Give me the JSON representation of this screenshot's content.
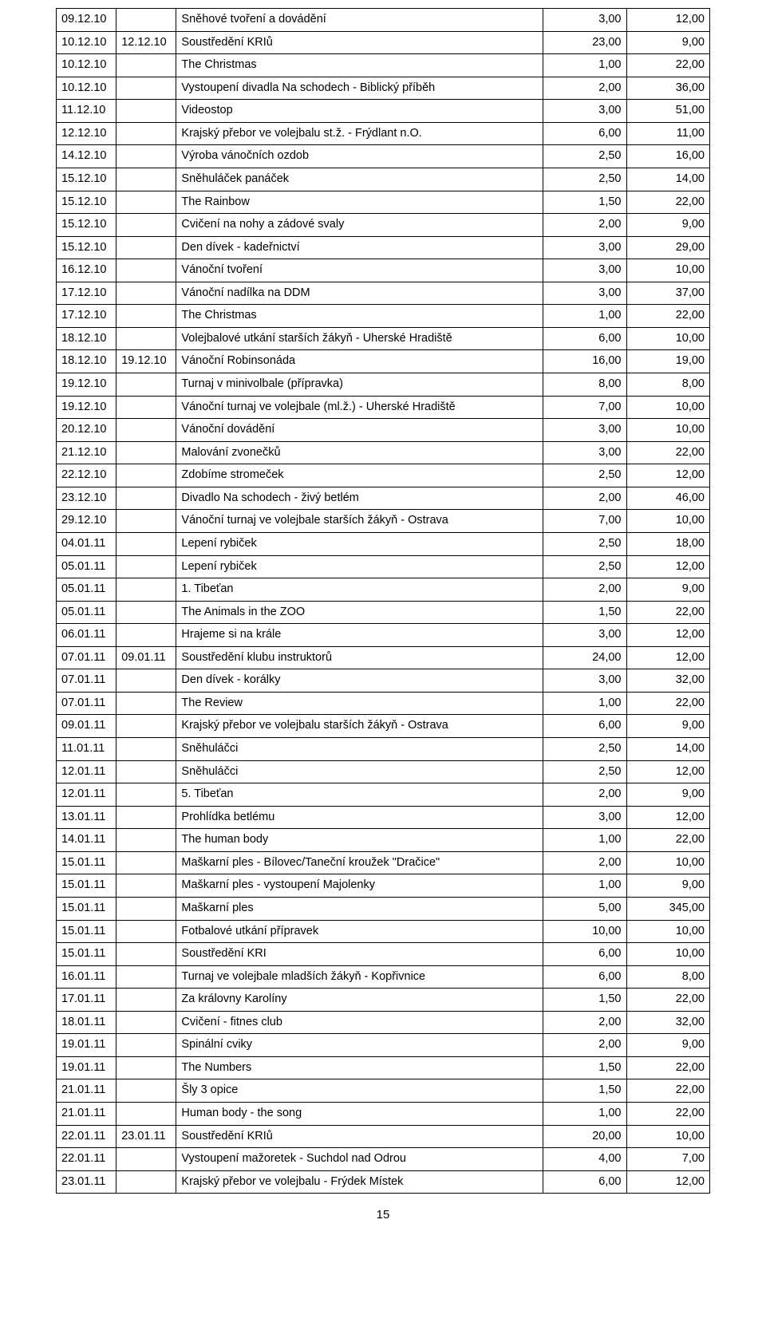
{
  "page_number": "15",
  "rows": [
    {
      "d1": "09.12.10",
      "d2": "",
      "desc": "Sněhové tvoření a dovádění",
      "v1": "3,00",
      "v2": "12,00"
    },
    {
      "d1": "10.12.10",
      "d2": "12.12.10",
      "desc": "Soustředění KRIů",
      "v1": "23,00",
      "v2": "9,00"
    },
    {
      "d1": "10.12.10",
      "d2": "",
      "desc": "The Christmas",
      "v1": "1,00",
      "v2": "22,00"
    },
    {
      "d1": "10.12.10",
      "d2": "",
      "desc": "Vystoupení divadla Na schodech - Biblický příběh",
      "v1": "2,00",
      "v2": "36,00"
    },
    {
      "d1": "11.12.10",
      "d2": "",
      "desc": "Videostop",
      "v1": "3,00",
      "v2": "51,00"
    },
    {
      "d1": "12.12.10",
      "d2": "",
      "desc": "Krajský přebor ve volejbalu st.ž. - Frýdlant n.O.",
      "v1": "6,00",
      "v2": "11,00"
    },
    {
      "d1": "14.12.10",
      "d2": "",
      "desc": "Výroba vánočních ozdob",
      "v1": "2,50",
      "v2": "16,00"
    },
    {
      "d1": "15.12.10",
      "d2": "",
      "desc": "Sněhuláček panáček",
      "v1": "2,50",
      "v2": "14,00"
    },
    {
      "d1": "15.12.10",
      "d2": "",
      "desc": "The Rainbow",
      "v1": "1,50",
      "v2": "22,00"
    },
    {
      "d1": "15.12.10",
      "d2": "",
      "desc": "Cvičení na nohy a zádové svaly",
      "v1": "2,00",
      "v2": "9,00"
    },
    {
      "d1": "15.12.10",
      "d2": "",
      "desc": "Den dívek - kadeřnictví",
      "v1": "3,00",
      "v2": "29,00"
    },
    {
      "d1": "16.12.10",
      "d2": "",
      "desc": "Vánoční tvoření",
      "v1": "3,00",
      "v2": "10,00"
    },
    {
      "d1": "17.12.10",
      "d2": "",
      "desc": "Vánoční nadílka na DDM",
      "v1": "3,00",
      "v2": "37,00"
    },
    {
      "d1": "17.12.10",
      "d2": "",
      "desc": "The Christmas",
      "v1": "1,00",
      "v2": "22,00"
    },
    {
      "d1": "18.12.10",
      "d2": "",
      "desc": "Volejbalové utkání starších žákyň - Uherské Hradiště",
      "v1": "6,00",
      "v2": "10,00"
    },
    {
      "d1": "18.12.10",
      "d2": "19.12.10",
      "desc": "Vánoční Robinsonáda",
      "v1": "16,00",
      "v2": "19,00"
    },
    {
      "d1": "19.12.10",
      "d2": "",
      "desc": "Turnaj v minivolbale (přípravka)",
      "v1": "8,00",
      "v2": "8,00"
    },
    {
      "d1": "19.12.10",
      "d2": "",
      "desc": "Vánoční turnaj ve volejbale (ml.ž.) - Uherské Hradiště",
      "v1": "7,00",
      "v2": "10,00"
    },
    {
      "d1": "20.12.10",
      "d2": "",
      "desc": "Vánoční dovádění",
      "v1": "3,00",
      "v2": "10,00"
    },
    {
      "d1": "21.12.10",
      "d2": "",
      "desc": "Malování zvonečků",
      "v1": "3,00",
      "v2": "22,00"
    },
    {
      "d1": "22.12.10",
      "d2": "",
      "desc": "Zdobíme stromeček",
      "v1": "2,50",
      "v2": "12,00"
    },
    {
      "d1": "23.12.10",
      "d2": "",
      "desc": "Divadlo Na schodech - živý betlém",
      "v1": "2,00",
      "v2": "46,00"
    },
    {
      "d1": "29.12.10",
      "d2": "",
      "desc": "Vánoční turnaj ve volejbale starších žákyň - Ostrava",
      "v1": "7,00",
      "v2": "10,00"
    },
    {
      "d1": "04.01.11",
      "d2": "",
      "desc": "Lepení rybiček",
      "v1": "2,50",
      "v2": "18,00"
    },
    {
      "d1": "05.01.11",
      "d2": "",
      "desc": "Lepení rybiček",
      "v1": "2,50",
      "v2": "12,00"
    },
    {
      "d1": "05.01.11",
      "d2": "",
      "desc": "1. Tibeťan",
      "v1": "2,00",
      "v2": "9,00"
    },
    {
      "d1": "05.01.11",
      "d2": "",
      "desc": "The Animals in the ZOO",
      "v1": "1,50",
      "v2": "22,00"
    },
    {
      "d1": "06.01.11",
      "d2": "",
      "desc": "Hrajeme si na krále",
      "v1": "3,00",
      "v2": "12,00"
    },
    {
      "d1": "07.01.11",
      "d2": "09.01.11",
      "desc": "Soustředění klubu instruktorů",
      "v1": "24,00",
      "v2": "12,00"
    },
    {
      "d1": "07.01.11",
      "d2": "",
      "desc": "Den dívek - korálky",
      "v1": "3,00",
      "v2": "32,00"
    },
    {
      "d1": "07.01.11",
      "d2": "",
      "desc": "The Review",
      "v1": "1,00",
      "v2": "22,00"
    },
    {
      "d1": "09.01.11",
      "d2": "",
      "desc": "Krajský přebor ve volejbalu starších žákyň - Ostrava",
      "v1": "6,00",
      "v2": "9,00"
    },
    {
      "d1": "11.01.11",
      "d2": "",
      "desc": "Sněhuláčci",
      "v1": "2,50",
      "v2": "14,00"
    },
    {
      "d1": "12.01.11",
      "d2": "",
      "desc": "Sněhuláčci",
      "v1": "2,50",
      "v2": "12,00"
    },
    {
      "d1": "12.01.11",
      "d2": "",
      "desc": "5. Tibeťan",
      "v1": "2,00",
      "v2": "9,00"
    },
    {
      "d1": "13.01.11",
      "d2": "",
      "desc": "Prohlídka betlému",
      "v1": "3,00",
      "v2": "12,00"
    },
    {
      "d1": "14.01.11",
      "d2": "",
      "desc": "The human body",
      "v1": "1,00",
      "v2": "22,00"
    },
    {
      "d1": "15.01.11",
      "d2": "",
      "desc": "Maškarní ples - Bílovec/Taneční kroužek \"Dračice\"",
      "v1": "2,00",
      "v2": "10,00"
    },
    {
      "d1": "15.01.11",
      "d2": "",
      "desc": "Maškarní ples - vystoupení Majolenky",
      "v1": "1,00",
      "v2": "9,00"
    },
    {
      "d1": "15.01.11",
      "d2": "",
      "desc": "Maškarní ples",
      "v1": "5,00",
      "v2": "345,00"
    },
    {
      "d1": "15.01.11",
      "d2": "",
      "desc": "Fotbalové utkání přípravek",
      "v1": "10,00",
      "v2": "10,00"
    },
    {
      "d1": "15.01.11",
      "d2": "",
      "desc": "Soustředění KRI",
      "v1": "6,00",
      "v2": "10,00"
    },
    {
      "d1": "16.01.11",
      "d2": "",
      "desc": "Turnaj ve volejbale mladších žákyň - Kopřivnice",
      "v1": "6,00",
      "v2": "8,00"
    },
    {
      "d1": "17.01.11",
      "d2": "",
      "desc": "Za královny Karolíny",
      "v1": "1,50",
      "v2": "22,00"
    },
    {
      "d1": "18.01.11",
      "d2": "",
      "desc": "Cvičení - fitnes club",
      "v1": "2,00",
      "v2": "32,00"
    },
    {
      "d1": "19.01.11",
      "d2": "",
      "desc": "Spinální cviky",
      "v1": "2,00",
      "v2": "9,00"
    },
    {
      "d1": "19.01.11",
      "d2": "",
      "desc": "The Numbers",
      "v1": "1,50",
      "v2": "22,00"
    },
    {
      "d1": "21.01.11",
      "d2": "",
      "desc": "Šly 3 opice",
      "v1": "1,50",
      "v2": "22,00"
    },
    {
      "d1": "21.01.11",
      "d2": "",
      "desc": "Human body - the song",
      "v1": "1,00",
      "v2": "22,00"
    },
    {
      "d1": "22.01.11",
      "d2": "23.01.11",
      "desc": "Soustředění KRIů",
      "v1": "20,00",
      "v2": "10,00"
    },
    {
      "d1": "22.01.11",
      "d2": "",
      "desc": "Vystoupení mažoretek - Suchdol nad Odrou",
      "v1": "4,00",
      "v2": "7,00"
    },
    {
      "d1": "23.01.11",
      "d2": "",
      "desc": "Krajský přebor ve volejbalu - Frýdek Místek",
      "v1": "6,00",
      "v2": "12,00"
    }
  ]
}
